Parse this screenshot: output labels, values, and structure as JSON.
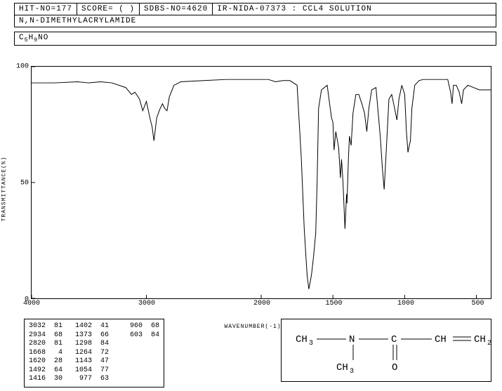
{
  "header": {
    "hit_no": "HIT-NO=177",
    "score": "SCORE=   (   )",
    "sdbs_no": "SDBS-NO=4620",
    "ir_info": "IR-NIDA-07373 : CCL4 SOLUTION"
  },
  "compound_name": "N,N-DIMETHYLACRYLAMIDE",
  "formula_html": "C<sub>5</sub>H<sub>9</sub>NO",
  "chart": {
    "type": "line",
    "xlabel": "WAVENUMBER(-1)",
    "ylabel": "TRANSMITTANCE(%)",
    "xlim": [
      4000,
      400
    ],
    "ylim": [
      0,
      100
    ],
    "x_ticks": [
      4000,
      3000,
      2000,
      1500,
      1000,
      500
    ],
    "y_ticks": [
      0,
      50,
      100
    ],
    "line_color": "#000000",
    "background_color": "#ffffff",
    "border_color": "#000000",
    "line_width": 1,
    "spectrum": [
      [
        4000,
        93
      ],
      [
        3800,
        93
      ],
      [
        3600,
        93.5
      ],
      [
        3500,
        93
      ],
      [
        3400,
        93.5
      ],
      [
        3300,
        93
      ],
      [
        3180,
        91
      ],
      [
        3130,
        88
      ],
      [
        3100,
        89
      ],
      [
        3060,
        86
      ],
      [
        3032,
        81
      ],
      [
        3000,
        85
      ],
      [
        2970,
        78
      ],
      [
        2950,
        74
      ],
      [
        2934,
        68
      ],
      [
        2910,
        78
      ],
      [
        2880,
        82
      ],
      [
        2860,
        84
      ],
      [
        2840,
        82
      ],
      [
        2820,
        81
      ],
      [
        2800,
        87
      ],
      [
        2760,
        92
      ],
      [
        2700,
        93.5
      ],
      [
        2500,
        94
      ],
      [
        2300,
        94.5
      ],
      [
        2100,
        94.5
      ],
      [
        2000,
        94.5
      ],
      [
        1950,
        94.5
      ],
      [
        1900,
        93.5
      ],
      [
        1850,
        94
      ],
      [
        1800,
        94
      ],
      [
        1750,
        92
      ],
      [
        1720,
        60
      ],
      [
        1700,
        30
      ],
      [
        1680,
        10
      ],
      [
        1668,
        4
      ],
      [
        1650,
        10
      ],
      [
        1635,
        18
      ],
      [
        1620,
        28
      ],
      [
        1610,
        50
      ],
      [
        1600,
        82
      ],
      [
        1580,
        90
      ],
      [
        1540,
        92
      ],
      [
        1510,
        78
      ],
      [
        1500,
        76
      ],
      [
        1492,
        64
      ],
      [
        1480,
        72
      ],
      [
        1460,
        65
      ],
      [
        1448,
        52
      ],
      [
        1440,
        60
      ],
      [
        1430,
        50
      ],
      [
        1416,
        30
      ],
      [
        1405,
        45
      ],
      [
        1402,
        41
      ],
      [
        1392,
        60
      ],
      [
        1385,
        70
      ],
      [
        1373,
        66
      ],
      [
        1360,
        80
      ],
      [
        1340,
        88
      ],
      [
        1320,
        88
      ],
      [
        1298,
        84
      ],
      [
        1280,
        80
      ],
      [
        1264,
        72
      ],
      [
        1250,
        82
      ],
      [
        1230,
        90
      ],
      [
        1200,
        91
      ],
      [
        1170,
        70
      ],
      [
        1155,
        56
      ],
      [
        1143,
        47
      ],
      [
        1130,
        62
      ],
      [
        1110,
        86
      ],
      [
        1090,
        88
      ],
      [
        1070,
        82
      ],
      [
        1054,
        77
      ],
      [
        1040,
        86
      ],
      [
        1020,
        92
      ],
      [
        1000,
        88
      ],
      [
        988,
        72
      ],
      [
        977,
        63
      ],
      [
        968,
        66
      ],
      [
        960,
        68
      ],
      [
        950,
        82
      ],
      [
        930,
        92
      ],
      [
        900,
        94
      ],
      [
        870,
        94.5
      ],
      [
        700,
        94.5
      ],
      [
        680,
        89
      ],
      [
        670,
        84
      ],
      [
        660,
        92
      ],
      [
        640,
        92
      ],
      [
        620,
        89
      ],
      [
        603,
        84
      ],
      [
        590,
        90
      ],
      [
        560,
        92
      ],
      [
        520,
        91
      ],
      [
        480,
        90
      ],
      [
        440,
        90
      ],
      [
        400,
        90
      ]
    ]
  },
  "peak_table": {
    "rows": [
      [
        "3032",
        "81",
        "1402",
        "41",
        " 960",
        "68"
      ],
      [
        "2934",
        "68",
        "1373",
        "66",
        " 603",
        "84"
      ],
      [
        "2820",
        "81",
        "1298",
        "84",
        "",
        ""
      ],
      [
        "1668",
        " 4",
        "1264",
        "72",
        "",
        ""
      ],
      [
        "1620",
        "28",
        "1143",
        "47",
        "",
        ""
      ],
      [
        "1492",
        "64",
        "1054",
        "77",
        "",
        ""
      ],
      [
        "1416",
        "30",
        " 977",
        "63",
        "",
        ""
      ]
    ]
  },
  "structure": {
    "labels": {
      "ch3a": "CH₃",
      "ch3b": "CH₃",
      "n": "N",
      "c": "C",
      "o": "O",
      "ch": "CH",
      "ch2": "CH₂"
    }
  }
}
